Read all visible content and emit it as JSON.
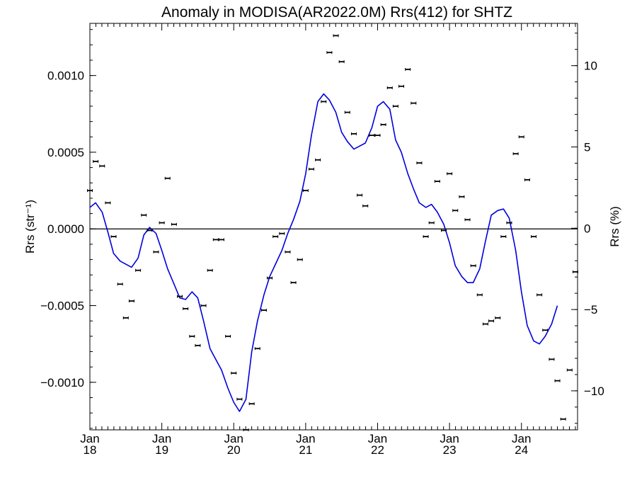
{
  "chart_data": {
    "type": "line",
    "title": "Anomaly in MODISA(AR2022.0M) Rrs(412) for SHTZ",
    "ylabel_left": "Rrs (str⁻¹)",
    "ylabel_right": "Rrs (%)",
    "xlabel": "",
    "x_axis": {
      "range": [
        2018.0,
        2024.78
      ],
      "major_ticks": [
        {
          "x": 2018.0,
          "month": "Jan",
          "year": "18"
        },
        {
          "x": 2019.0,
          "month": "Jan",
          "year": "19"
        },
        {
          "x": 2020.0,
          "month": "Jan",
          "year": "20"
        },
        {
          "x": 2021.0,
          "month": "Jan",
          "year": "21"
        },
        {
          "x": 2022.0,
          "month": "Jan",
          "year": "22"
        },
        {
          "x": 2023.0,
          "month": "Jan",
          "year": "23"
        },
        {
          "x": 2024.0,
          "month": "Jan",
          "year": "24"
        }
      ]
    },
    "y_left": {
      "range": [
        -0.00131,
        0.00134
      ],
      "ticks": [
        {
          "v": 0.001,
          "label": "0.0010"
        },
        {
          "v": 0.0005,
          "label": "0.0005"
        },
        {
          "v": 0.0,
          "label": "0.0000"
        },
        {
          "v": -0.0005,
          "label": "−0.0005"
        },
        {
          "v": -0.001,
          "label": "−0.0010"
        }
      ]
    },
    "y_right": {
      "range": [
        -12.4,
        12.6
      ],
      "ticks": [
        {
          "v": 10,
          "label": "10"
        },
        {
          "v": 5,
          "label": "5"
        },
        {
          "v": 0,
          "label": "0"
        },
        {
          "v": -5,
          "label": "−5"
        },
        {
          "v": -10,
          "label": "−10"
        }
      ]
    },
    "zero_line": true,
    "grid": false,
    "colors": {
      "smooth_line": "#0000dd",
      "points": "#000000",
      "axes": "#000000"
    },
    "series": [
      {
        "kind": "monthly_anomaly_points",
        "points": [
          [
            2018.0,
            0.00025
          ],
          [
            2018.08,
            0.00044
          ],
          [
            2018.17,
            0.00041
          ],
          [
            2018.25,
            0.00017
          ],
          [
            2018.33,
            -5e-05
          ],
          [
            2018.42,
            -0.00036
          ],
          [
            2018.5,
            -0.00058
          ],
          [
            2018.58,
            -0.00047
          ],
          [
            2018.67,
            -0.00027
          ],
          [
            2018.75,
            9e-05
          ],
          [
            2018.83,
            -1e-05
          ],
          [
            2018.92,
            -0.00015
          ],
          [
            2019.0,
            4e-05
          ],
          [
            2019.08,
            0.00033
          ],
          [
            2019.17,
            3e-05
          ],
          [
            2019.25,
            -0.00044
          ],
          [
            2019.33,
            -0.00052
          ],
          [
            2019.42,
            -0.0007
          ],
          [
            2019.5,
            -0.00076
          ],
          [
            2019.58,
            -0.0005
          ],
          [
            2019.67,
            -0.00027
          ],
          [
            2019.75,
            -7e-05
          ],
          [
            2019.83,
            -7e-05
          ],
          [
            2019.92,
            -0.0007
          ],
          [
            2020.0,
            -0.00094
          ],
          [
            2020.08,
            -0.00111
          ],
          [
            2020.17,
            -0.00131
          ],
          [
            2020.25,
            -0.00114
          ],
          [
            2020.33,
            -0.00078
          ],
          [
            2020.42,
            -0.00053
          ],
          [
            2020.5,
            -0.00032
          ],
          [
            2020.58,
            -5e-05
          ],
          [
            2020.67,
            -3e-05
          ],
          [
            2020.75,
            -0.00015
          ],
          [
            2020.83,
            -0.00035
          ],
          [
            2020.92,
            -0.0002
          ],
          [
            2021.0,
            0.00025
          ],
          [
            2021.08,
            0.00039
          ],
          [
            2021.17,
            0.00045
          ],
          [
            2021.25,
            0.00083
          ],
          [
            2021.33,
            0.00115
          ],
          [
            2021.42,
            0.00126
          ],
          [
            2021.5,
            0.00109
          ],
          [
            2021.58,
            0.00076
          ],
          [
            2021.67,
            0.00062
          ],
          [
            2021.75,
            0.00022
          ],
          [
            2021.83,
            0.00015
          ],
          [
            2021.92,
            0.00061
          ],
          [
            2022.0,
            0.00061
          ],
          [
            2022.08,
            0.00068
          ],
          [
            2022.17,
            0.00092
          ],
          [
            2022.25,
            0.0008
          ],
          [
            2022.33,
            0.00093
          ],
          [
            2022.42,
            0.00104
          ],
          [
            2022.5,
            0.00082
          ],
          [
            2022.58,
            0.00043
          ],
          [
            2022.67,
            -5e-05
          ],
          [
            2022.75,
            4e-05
          ],
          [
            2022.83,
            0.00031
          ],
          [
            2022.92,
            -1e-05
          ],
          [
            2023.0,
            0.00036
          ],
          [
            2023.08,
            0.00012
          ],
          [
            2023.17,
            0.00021
          ],
          [
            2023.25,
            6e-05
          ],
          [
            2023.33,
            -0.00024
          ],
          [
            2023.42,
            -0.00043
          ],
          [
            2023.5,
            -0.00062
          ],
          [
            2023.58,
            -0.0006
          ],
          [
            2023.67,
            -0.00058
          ],
          [
            2023.75,
            -5e-05
          ],
          [
            2023.83,
            4e-05
          ],
          [
            2023.92,
            0.00049
          ],
          [
            2024.0,
            0.0006
          ],
          [
            2024.08,
            0.00032
          ],
          [
            2024.17,
            -5e-05
          ],
          [
            2024.25,
            -0.00043
          ],
          [
            2024.33,
            -0.00066
          ],
          [
            2024.42,
            -0.00085
          ],
          [
            2024.5,
            -0.00099
          ],
          [
            2024.58,
            -0.00124
          ],
          [
            2024.67,
            -0.00092
          ],
          [
            2024.75,
            -0.00028
          ]
        ]
      },
      {
        "kind": "smoothed_line",
        "points": [
          [
            2018.0,
            0.00014
          ],
          [
            2018.08,
            0.00017
          ],
          [
            2018.17,
            0.00011
          ],
          [
            2018.25,
            -2e-05
          ],
          [
            2018.33,
            -0.00016
          ],
          [
            2018.42,
            -0.00021
          ],
          [
            2018.5,
            -0.00023
          ],
          [
            2018.58,
            -0.00025
          ],
          [
            2018.67,
            -0.00019
          ],
          [
            2018.75,
            -4e-05
          ],
          [
            2018.83,
            1e-05
          ],
          [
            2018.92,
            -3e-05
          ],
          [
            2019.0,
            -0.00014
          ],
          [
            2019.08,
            -0.00026
          ],
          [
            2019.17,
            -0.00036
          ],
          [
            2019.25,
            -0.00045
          ],
          [
            2019.33,
            -0.00046
          ],
          [
            2019.42,
            -0.00041
          ],
          [
            2019.5,
            -0.00045
          ],
          [
            2019.58,
            -0.0006
          ],
          [
            2019.67,
            -0.00078
          ],
          [
            2019.75,
            -0.00085
          ],
          [
            2019.83,
            -0.00092
          ],
          [
            2019.92,
            -0.00104
          ],
          [
            2020.0,
            -0.00113
          ],
          [
            2020.08,
            -0.00119
          ],
          [
            2020.17,
            -0.00111
          ],
          [
            2020.25,
            -0.0008
          ],
          [
            2020.33,
            -0.0006
          ],
          [
            2020.42,
            -0.00043
          ],
          [
            2020.5,
            -0.00031
          ],
          [
            2020.58,
            -0.00023
          ],
          [
            2020.67,
            -0.00014
          ],
          [
            2020.75,
            -3e-05
          ],
          [
            2020.83,
            6e-05
          ],
          [
            2020.92,
            0.00018
          ],
          [
            2021.0,
            0.00036
          ],
          [
            2021.08,
            0.00061
          ],
          [
            2021.17,
            0.00083
          ],
          [
            2021.25,
            0.00088
          ],
          [
            2021.33,
            0.00084
          ],
          [
            2021.42,
            0.00076
          ],
          [
            2021.5,
            0.00063
          ],
          [
            2021.58,
            0.00057
          ],
          [
            2021.67,
            0.00052
          ],
          [
            2021.75,
            0.00054
          ],
          [
            2021.83,
            0.00056
          ],
          [
            2021.92,
            0.00066
          ],
          [
            2022.0,
            0.0008
          ],
          [
            2022.08,
            0.00083
          ],
          [
            2022.17,
            0.00078
          ],
          [
            2022.25,
            0.00058
          ],
          [
            2022.33,
            0.0005
          ],
          [
            2022.42,
            0.00036
          ],
          [
            2022.5,
            0.00026
          ],
          [
            2022.58,
            0.00017
          ],
          [
            2022.67,
            0.00014
          ],
          [
            2022.75,
            0.00016
          ],
          [
            2022.83,
            0.00011
          ],
          [
            2022.92,
            3e-05
          ],
          [
            2023.0,
            -9e-05
          ],
          [
            2023.08,
            -0.00024
          ],
          [
            2023.17,
            -0.00031
          ],
          [
            2023.25,
            -0.00035
          ],
          [
            2023.33,
            -0.00035
          ],
          [
            2023.42,
            -0.00026
          ],
          [
            2023.5,
            -8e-05
          ],
          [
            2023.58,
            9e-05
          ],
          [
            2023.67,
            0.00012
          ],
          [
            2023.75,
            0.00013
          ],
          [
            2023.83,
            7e-05
          ],
          [
            2023.92,
            -0.00014
          ],
          [
            2024.0,
            -0.00041
          ],
          [
            2024.08,
            -0.00063
          ],
          [
            2024.17,
            -0.00073
          ],
          [
            2024.25,
            -0.00075
          ],
          [
            2024.33,
            -0.0007
          ],
          [
            2024.42,
            -0.00062
          ],
          [
            2024.5,
            -0.0005
          ]
        ]
      }
    ]
  }
}
